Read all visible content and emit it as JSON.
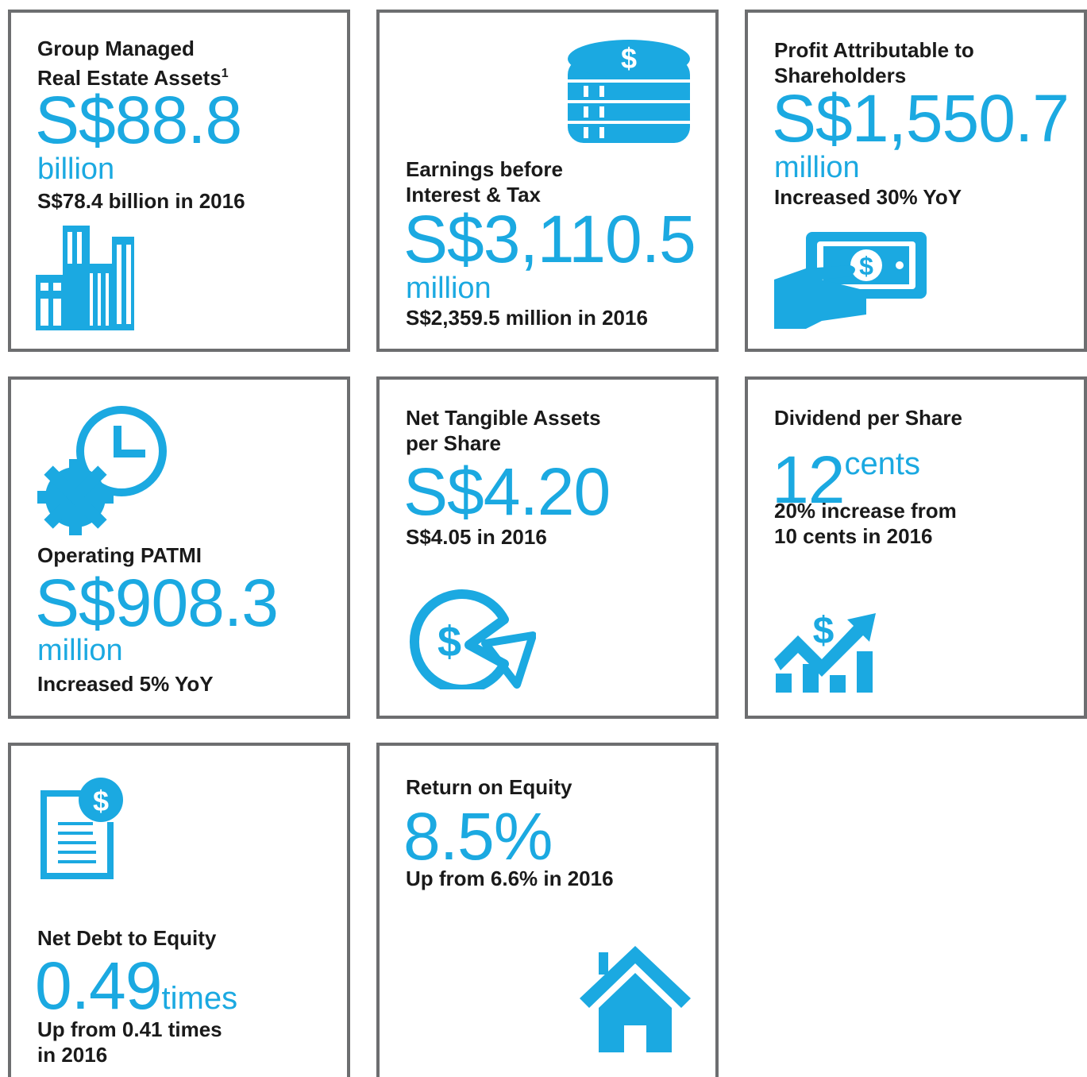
{
  "cards": [
    {
      "title": [
        "Group Managed",
        "Real Estate Assets"
      ],
      "footnote": "1",
      "value": "S$88.8",
      "unit": "billion",
      "note": [
        "S$78.4 billion in 2016"
      ]
    },
    {
      "title": [
        "Earnings before",
        "Interest & Tax"
      ],
      "value": "S$3,110.5",
      "unit": "million",
      "note": [
        "S$2,359.5 million in 2016"
      ]
    },
    {
      "title": [
        "Profit Attributable to",
        "Shareholders"
      ],
      "value": "S$1,550.7",
      "unit": "million",
      "note": [
        "Increased 30% YoY"
      ]
    },
    {
      "title": [
        "Operating PATMI"
      ],
      "value": "S$908.3",
      "unit": "million",
      "note": [
        "Increased 5% YoY"
      ]
    },
    {
      "title": [
        "Net Tangible Assets",
        "per Share"
      ],
      "value": "S$4.20",
      "note": [
        "S$4.05 in 2016"
      ]
    },
    {
      "title": [
        "Dividend per Share"
      ],
      "value": "12",
      "unit": "cents",
      "note": [
        "20% increase from",
        "10 cents in 2016"
      ]
    },
    {
      "title": [
        "Net Debt to Equity"
      ],
      "value": "0.49",
      "unit": "times",
      "note": [
        "Up from 0.41 times",
        "in 2016"
      ]
    },
    {
      "title": [
        "Return on Equity"
      ],
      "value": "8.5%",
      "note": [
        "Up from 6.6% in 2016"
      ]
    }
  ]
}
